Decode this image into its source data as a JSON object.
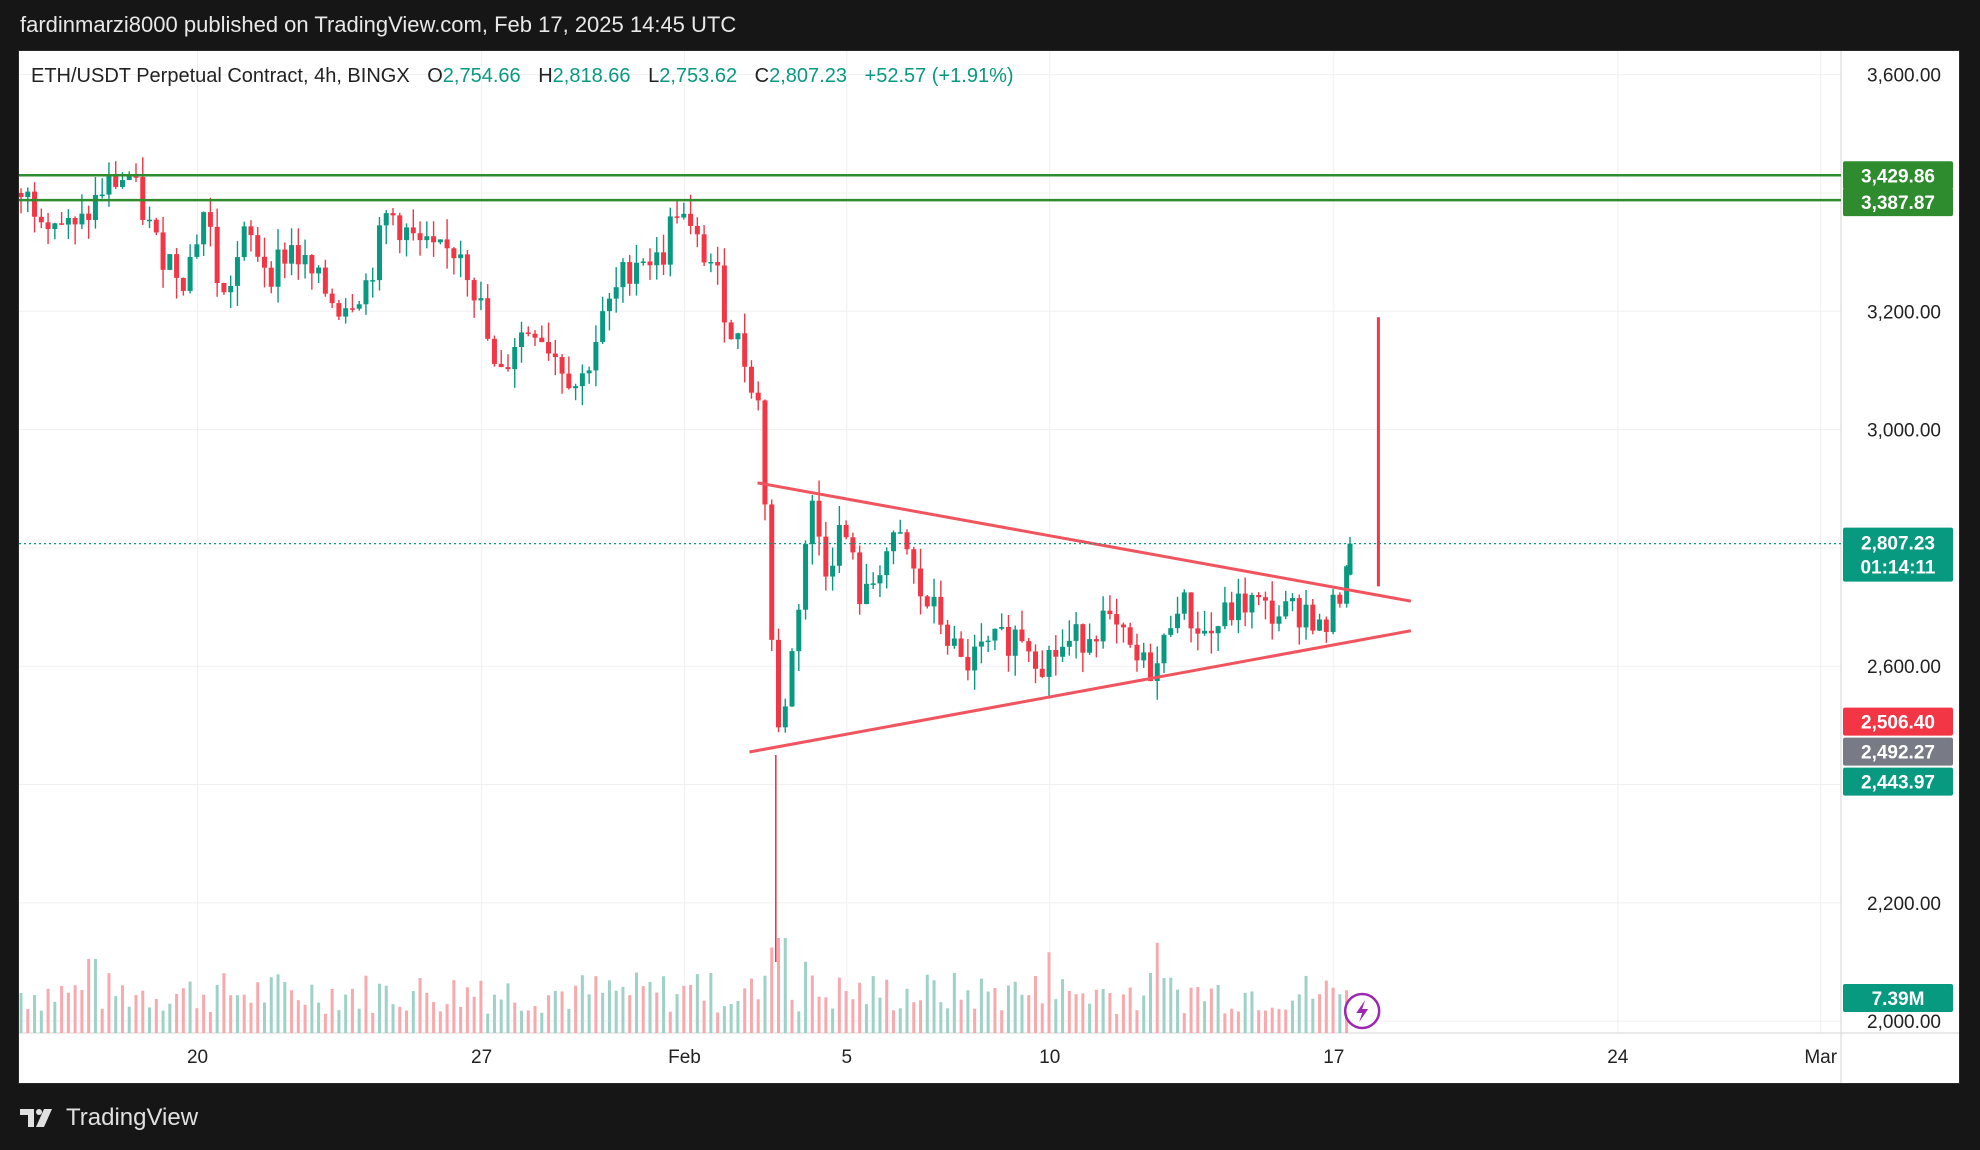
{
  "header": {
    "text": "fardinmarzi8000 published on TradingView.com, Feb 17, 2025 14:45 UTC"
  },
  "legend": {
    "symbol": "ETH/USDT Perpetual Contract, 4h, BINGX",
    "o_label": "O",
    "o": "2,754.66",
    "h_label": "H",
    "h": "2,818.66",
    "l_label": "L",
    "l": "2,753.62",
    "c_label": "C",
    "c": "2,807.23",
    "change": "+52.57 (+1.91%)"
  },
  "footer": {
    "brand": "TradingView",
    "logo_icon": "tradingview-logo-icon"
  },
  "colors": {
    "up": "#089981",
    "down": "#f23645",
    "green_line": "#2e8b2e",
    "pattern": "#f0555f",
    "volume_up": "#9ed2c6",
    "volume_down": "#f7a9ae",
    "grey_badge": "#787b86"
  },
  "chart_data": {
    "type": "candlestick",
    "timeframe": "4h",
    "y_axis": {
      "ticks": [
        2000,
        2200,
        2400,
        2600,
        2800,
        3000,
        3200,
        3400,
        3600
      ],
      "tick_labels": [
        "2,000.00",
        "2,200.00",
        "",
        "2,600.00",
        "",
        "3,000.00",
        "3,200.00",
        "",
        "3,600.00"
      ],
      "ylim": [
        1980,
        3640
      ]
    },
    "x_axis": {
      "ticks": [
        {
          "label": "20",
          "day": 20
        },
        {
          "label": "27",
          "day": 27
        },
        {
          "label": "Feb",
          "day": 32
        },
        {
          "label": "5",
          "day": 36
        },
        {
          "label": "10",
          "day": 41
        },
        {
          "label": "17",
          "day": 48
        },
        {
          "label": "24",
          "day": 55
        },
        {
          "label": "Mar",
          "day": 60
        }
      ],
      "xlim": [
        15.6,
        60.5
      ]
    },
    "last_price": {
      "value": 2807.23,
      "label": "2,807.23",
      "countdown": "01:14:11"
    },
    "price_badges": [
      {
        "label": "3,429.86",
        "value": 3429.86,
        "color": "#2e8b2e"
      },
      {
        "label": "3,387.87",
        "value": 3387.87,
        "color": "#2e8b2e"
      },
      {
        "label": "2,506.40",
        "value": 2506.4,
        "color": "#f23645"
      },
      {
        "label": "2,492.27",
        "value": 2492.27,
        "color": "#787b86"
      },
      {
        "label": "2,443.97",
        "value": 2443.97,
        "color": "#089981"
      },
      {
        "label": "7.39M",
        "value": 1985,
        "color": "#089981"
      }
    ],
    "horizontal_levels": [
      {
        "value": 3429.86,
        "color": "#2e8b2e"
      },
      {
        "value": 3387.87,
        "color": "#2e8b2e"
      }
    ],
    "triangle": {
      "upper": [
        {
          "day": 33.8,
          "price": 2910
        },
        {
          "day": 49.9,
          "price": 2710
        }
      ],
      "lower": [
        {
          "day": 33.6,
          "price": 2455
        },
        {
          "day": 49.9,
          "price": 2660
        }
      ]
    },
    "projection": {
      "day": 49.1,
      "from": 2735,
      "to": 3190
    },
    "price_path": [
      [
        15.6,
        3400
      ],
      [
        16.3,
        3370
      ],
      [
        17.0,
        3330
      ],
      [
        17.7,
        3410
      ],
      [
        18.3,
        3430
      ],
      [
        19.0,
        3310
      ],
      [
        19.7,
        3260
      ],
      [
        20.2,
        3380
      ],
      [
        20.6,
        3210
      ],
      [
        21.2,
        3330
      ],
      [
        21.8,
        3270
      ],
      [
        22.3,
        3310
      ],
      [
        22.9,
        3250
      ],
      [
        23.5,
        3210
      ],
      [
        24.2,
        3250
      ],
      [
        24.7,
        3370
      ],
      [
        25.3,
        3320
      ],
      [
        25.9,
        3290
      ],
      [
        26.5,
        3310
      ],
      [
        27.0,
        3200
      ],
      [
        27.4,
        3070
      ],
      [
        27.8,
        3150
      ],
      [
        28.3,
        3180
      ],
      [
        28.8,
        3130
      ],
      [
        29.4,
        3070
      ],
      [
        29.9,
        3170
      ],
      [
        30.5,
        3260
      ],
      [
        30.9,
        3300
      ],
      [
        31.4,
        3280
      ],
      [
        31.8,
        3380
      ],
      [
        32.2,
        3320
      ],
      [
        32.7,
        3280
      ],
      [
        33.1,
        3180
      ],
      [
        33.6,
        3100
      ],
      [
        33.9,
        3020
      ],
      [
        34.1,
        2700
      ],
      [
        34.3,
        2480
      ],
      [
        34.6,
        2590
      ],
      [
        34.9,
        2760
      ],
      [
        35.1,
        2880
      ],
      [
        35.5,
        2770
      ],
      [
        35.9,
        2840
      ],
      [
        36.4,
        2700
      ],
      [
        36.9,
        2790
      ],
      [
        37.4,
        2810
      ],
      [
        37.8,
        2720
      ],
      [
        38.3,
        2680
      ],
      [
        38.8,
        2600
      ],
      [
        39.3,
        2620
      ],
      [
        39.8,
        2640
      ],
      [
        40.3,
        2660
      ],
      [
        40.8,
        2610
      ],
      [
        41.3,
        2630
      ],
      [
        41.8,
        2650
      ],
      [
        42.3,
        2680
      ],
      [
        42.8,
        2640
      ],
      [
        43.2,
        2600
      ],
      [
        43.7,
        2600
      ],
      [
        44.1,
        2720
      ],
      [
        44.5,
        2680
      ],
      [
        44.9,
        2650
      ],
      [
        45.4,
        2690
      ],
      [
        45.9,
        2710
      ],
      [
        46.4,
        2690
      ],
      [
        46.9,
        2690
      ],
      [
        47.4,
        2700
      ],
      [
        47.7,
        2650
      ],
      [
        48.1,
        2710
      ],
      [
        48.4,
        2807
      ]
    ],
    "volume_spikes": [
      {
        "day": 17.4,
        "value": 0.78
      },
      {
        "day": 27.0,
        "value": 0.55
      },
      {
        "day": 32.3,
        "value": 0.62
      },
      {
        "day": 34.1,
        "value": 0.9
      },
      {
        "day": 34.4,
        "value": 1.0
      },
      {
        "day": 35.0,
        "value": 0.75
      },
      {
        "day": 40.0,
        "value": 0.5
      },
      {
        "day": 41.0,
        "value": 0.85
      },
      {
        "day": 43.6,
        "value": 0.95
      },
      {
        "day": 48.3,
        "value": 0.45
      }
    ]
  }
}
